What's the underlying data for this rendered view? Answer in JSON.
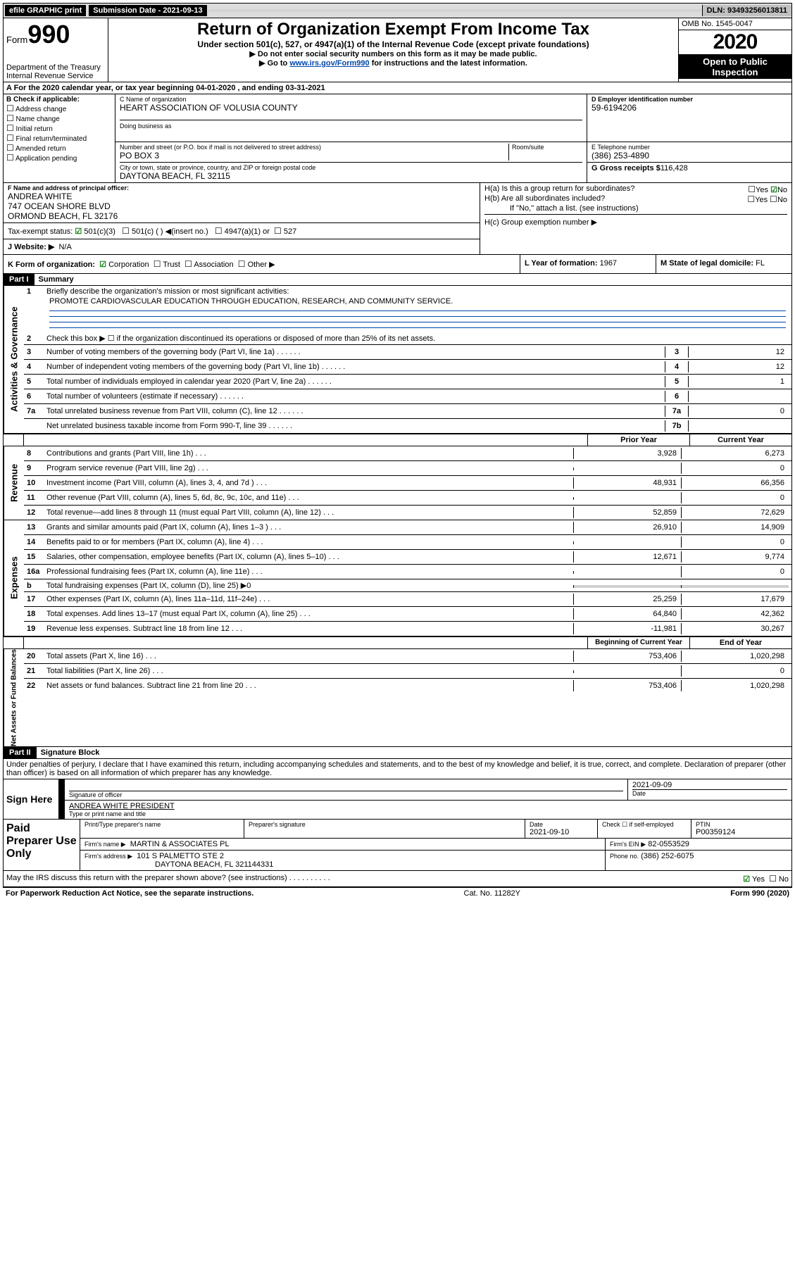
{
  "topbar": {
    "efile": "efile GRAPHIC print",
    "submission": "Submission Date - 2021-09-13",
    "dln": "DLN: 93493256013811"
  },
  "header": {
    "form_prefix": "Form",
    "form_num": "990",
    "title": "Return of Organization Exempt From Income Tax",
    "subtitle": "Under section 501(c), 527, or 4947(a)(1) of the Internal Revenue Code (except private foundations)",
    "note1": "▶ Do not enter social security numbers on this form as it may be made public.",
    "note2_pre": "▶ Go to ",
    "note2_link": "www.irs.gov/Form990",
    "note2_post": " for instructions and the latest information.",
    "dept": "Department of the Treasury\nInternal Revenue Service",
    "omb": "OMB No. 1545-0047",
    "year": "2020",
    "open": "Open to Public Inspection"
  },
  "period": "A For the 2020 calendar year, or tax year beginning 04-01-2020     , and ending 03-31-2021",
  "boxB": {
    "label": "B Check if applicable:",
    "items": [
      "Address change",
      "Name change",
      "Initial return",
      "Final return/terminated",
      "Amended return",
      "Application pending"
    ]
  },
  "boxC": {
    "label": "C Name of organization",
    "name": "HEART ASSOCIATION OF VOLUSIA COUNTY",
    "dba_label": "Doing business as",
    "addr_label": "Number and street (or P.O. box if mail is not delivered to street address)",
    "room_label": "Room/suite",
    "addr": "PO BOX 3",
    "city_label": "City or town, state or province, country, and ZIP or foreign postal code",
    "city": "DAYTONA BEACH, FL  32115"
  },
  "boxD": {
    "label": "D Employer identification number",
    "ein": "59-6194206"
  },
  "boxE": {
    "label": "E Telephone number",
    "phone": "(386) 253-4890"
  },
  "boxG": {
    "label": "G Gross receipts $",
    "amount": "116,428"
  },
  "boxF": {
    "label": "F  Name and address of principal officer:",
    "name": "ANDREA WHITE",
    "addr1": "747 OCEAN SHORE BLVD",
    "addr2": "ORMOND BEACH, FL  32176"
  },
  "boxH": {
    "a": "H(a)  Is this a group return for subordinates?",
    "b": "H(b)  Are all subordinates included?",
    "note": "If \"No,\" attach a list. (see instructions)",
    "c": "H(c)  Group exemption number ▶",
    "yes": "Yes",
    "no": "No"
  },
  "taxExempt": {
    "label": "Tax-exempt status:",
    "c3": "501(c)(3)",
    "c": "501(c) (   ) ◀(insert no.)",
    "a1": "4947(a)(1) or",
    "s527": "527"
  },
  "boxJ": {
    "label": "J    Website: ▶",
    "value": "N/A"
  },
  "boxK": {
    "label": "K Form of organization:",
    "corp": "Corporation",
    "trust": "Trust",
    "assoc": "Association",
    "other": "Other ▶"
  },
  "boxL": {
    "label": "L Year of formation:",
    "value": "1967"
  },
  "boxM": {
    "label": "M State of legal domicile:",
    "value": "FL"
  },
  "part1": {
    "label": "Part I",
    "title": "Summary",
    "q1": "Briefly describe the organization's mission or most significant activities:",
    "mission": "PROMOTE CARDIOVASCULAR EDUCATION THROUGH EDUCATION, RESEARCH, AND COMMUNITY SERVICE.",
    "q2": "Check this box ▶ ☐  if the organization discontinued its operations or disposed of more than 25% of its net assets.",
    "rows_top": [
      {
        "n": "3",
        "t": "Number of voting members of the governing body (Part VI, line 1a)",
        "c": "3",
        "v": "12"
      },
      {
        "n": "4",
        "t": "Number of independent voting members of the governing body (Part VI, line 1b)",
        "c": "4",
        "v": "12"
      },
      {
        "n": "5",
        "t": "Total number of individuals employed in calendar year 2020 (Part V, line 2a)",
        "c": "5",
        "v": "1"
      },
      {
        "n": "6",
        "t": "Total number of volunteers (estimate if necessary)",
        "c": "6",
        "v": ""
      },
      {
        "n": "7a",
        "t": "Total unrelated business revenue from Part VIII, column (C), line 12",
        "c": "7a",
        "v": "0"
      },
      {
        "n": "",
        "t": "Net unrelated business taxable income from Form 990-T, line 39",
        "c": "7b",
        "v": ""
      }
    ],
    "hdr_prior": "Prior Year",
    "hdr_curr": "Current Year",
    "rev_rows": [
      {
        "n": "8",
        "t": "Contributions and grants (Part VIII, line 1h)",
        "p": "3,928",
        "c": "6,273"
      },
      {
        "n": "9",
        "t": "Program service revenue (Part VIII, line 2g)",
        "p": "",
        "c": "0"
      },
      {
        "n": "10",
        "t": "Investment income (Part VIII, column (A), lines 3, 4, and 7d )",
        "p": "48,931",
        "c": "66,356"
      },
      {
        "n": "11",
        "t": "Other revenue (Part VIII, column (A), lines 5, 6d, 8c, 9c, 10c, and 11e)",
        "p": "",
        "c": "0"
      },
      {
        "n": "12",
        "t": "Total revenue—add lines 8 through 11 (must equal Part VIII, column (A), line 12)",
        "p": "52,859",
        "c": "72,629"
      }
    ],
    "exp_rows": [
      {
        "n": "13",
        "t": "Grants and similar amounts paid (Part IX, column (A), lines 1–3 )",
        "p": "26,910",
        "c": "14,909"
      },
      {
        "n": "14",
        "t": "Benefits paid to or for members (Part IX, column (A), line 4)",
        "p": "",
        "c": "0"
      },
      {
        "n": "15",
        "t": "Salaries, other compensation, employee benefits (Part IX, column (A), lines 5–10)",
        "p": "12,671",
        "c": "9,774"
      },
      {
        "n": "16a",
        "t": "Professional fundraising fees (Part IX, column (A), line 11e)",
        "p": "",
        "c": "0"
      },
      {
        "n": "b",
        "t": "Total fundraising expenses (Part IX, column (D), line 25) ▶0",
        "p": null,
        "c": null
      },
      {
        "n": "17",
        "t": "Other expenses (Part IX, column (A), lines 11a–11d, 11f–24e)",
        "p": "25,259",
        "c": "17,679"
      },
      {
        "n": "18",
        "t": "Total expenses. Add lines 13–17 (must equal Part IX, column (A), line 25)",
        "p": "64,840",
        "c": "42,362"
      },
      {
        "n": "19",
        "t": "Revenue less expenses. Subtract line 18 from line 12",
        "p": "-11,981",
        "c": "30,267"
      }
    ],
    "hdr_boy": "Beginning of Current Year",
    "hdr_eoy": "End of Year",
    "net_rows": [
      {
        "n": "20",
        "t": "Total assets (Part X, line 16)",
        "p": "753,406",
        "c": "1,020,298"
      },
      {
        "n": "21",
        "t": "Total liabilities (Part X, line 26)",
        "p": "",
        "c": "0"
      },
      {
        "n": "22",
        "t": "Net assets or fund balances. Subtract line 21 from line 20",
        "p": "753,406",
        "c": "1,020,298"
      }
    ],
    "vlabels": {
      "gov": "Activities & Governance",
      "rev": "Revenue",
      "exp": "Expenses",
      "net": "Net Assets or Fund Balances"
    }
  },
  "part2": {
    "label": "Part II",
    "title": "Signature Block",
    "decl": "Under penalties of perjury, I declare that I have examined this return, including accompanying schedules and statements, and to the best of my knowledge and belief, it is true, correct, and complete. Declaration of preparer (other than officer) is based on all information of which preparer has any knowledge."
  },
  "sign": {
    "here": "Sign Here",
    "sig_label": "Signature of officer",
    "date": "2021-09-09",
    "date_label": "Date",
    "name": "ANDREA WHITE PRESIDENT",
    "name_label": "Type or print name and title"
  },
  "paid": {
    "title": "Paid Preparer Use Only",
    "h1": "Print/Type preparer's name",
    "h2": "Preparer's signature",
    "h3": "Date",
    "date": "2021-09-10",
    "check_label": "Check ☐ if self-employed",
    "ptin_label": "PTIN",
    "ptin": "P00359124",
    "firm_label": "Firm's name      ▶",
    "firm": "MARTIN & ASSOCIATES PL",
    "ein_label": "Firm's EIN ▶",
    "ein": "82-0553529",
    "addr_label": "Firm's address  ▶",
    "addr1": "101 S PALMETTO STE 2",
    "addr2": "DAYTONA BEACH, FL  321144331",
    "phone_label": "Phone no.",
    "phone": "(386) 252-6075"
  },
  "discuss": {
    "text": "May the IRS discuss this return with the preparer shown above? (see instructions)",
    "yes": "Yes",
    "no": "No"
  },
  "footer": {
    "left": "For Paperwork Reduction Act Notice, see the separate instructions.",
    "mid": "Cat. No. 11282Y",
    "right": "Form 990 (2020)"
  }
}
